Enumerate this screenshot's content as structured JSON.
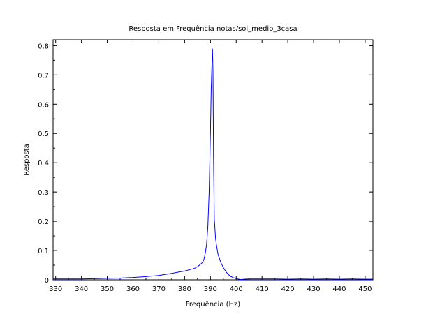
{
  "chart_data": {
    "type": "line",
    "title": "Resposta em Frequência notas/sol_medio_3casa",
    "xlabel": "Frequência (Hz)",
    "ylabel": "Resposta",
    "xlim": [
      329,
      453
    ],
    "ylim": [
      0,
      0.82
    ],
    "x_ticks": [
      330,
      340,
      350,
      360,
      370,
      380,
      390,
      400,
      410,
      420,
      430,
      440,
      450
    ],
    "x_tick_labels": [
      "330",
      "340",
      "350",
      "360",
      "370",
      "380",
      "390",
      "400",
      "410",
      "420",
      "430",
      "440",
      "450"
    ],
    "y_ticks": [
      0,
      0.1,
      0.2,
      0.3,
      0.4,
      0.5,
      0.6,
      0.7,
      0.8
    ],
    "y_tick_labels": [
      "0",
      "0.1",
      "0.2",
      "0.3",
      "0.4",
      "0.5",
      "0.6",
      "0.7",
      "0.8"
    ],
    "grid": false,
    "series_color": "#0000ff",
    "x": [
      329,
      335,
      340,
      345,
      350,
      355,
      360,
      365,
      370,
      372,
      375,
      378,
      380,
      382,
      383,
      384,
      385,
      386,
      387,
      387.5,
      388,
      388.5,
      389,
      389.5,
      390,
      390.3,
      390.6,
      390.8,
      391,
      391.2,
      391.5,
      392,
      392.5,
      393,
      394,
      395,
      396,
      397,
      398,
      399,
      400,
      401,
      402,
      403,
      405,
      410,
      415,
      420,
      425,
      430,
      435,
      440,
      445,
      450,
      453
    ],
    "y": [
      0.003,
      0.003,
      0.003,
      0.004,
      0.005,
      0.006,
      0.008,
      0.011,
      0.015,
      0.018,
      0.022,
      0.027,
      0.03,
      0.035,
      0.037,
      0.04,
      0.045,
      0.052,
      0.06,
      0.07,
      0.09,
      0.12,
      0.18,
      0.3,
      0.5,
      0.65,
      0.74,
      0.79,
      0.71,
      0.42,
      0.21,
      0.14,
      0.11,
      0.085,
      0.06,
      0.042,
      0.028,
      0.018,
      0.011,
      0.007,
      0.004,
      0.002,
      0.001,
      0.002,
      0.003,
      0.003,
      0.003,
      0.002,
      0.003,
      0.002,
      0.003,
      0.002,
      0.003,
      0.002,
      0.002
    ]
  }
}
